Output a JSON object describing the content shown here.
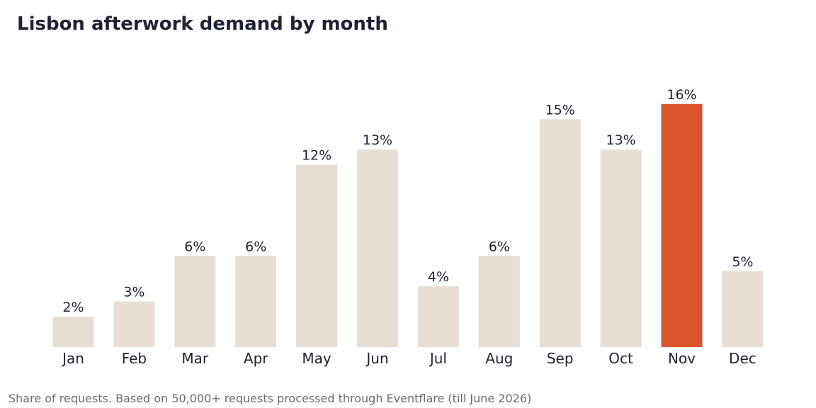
{
  "footnote": "Share of requests. Based on 50,000+ requests processed through Eventflare (till June 2026)",
  "colors": {
    "bar": "#e7ded5",
    "highlight": "#d9532b",
    "text": "#1f2230",
    "footnote": "#6b6b75",
    "background": "#ffffff"
  },
  "chart_data": {
    "type": "bar",
    "title": "Lisbon afterwork demand by month",
    "xlabel": "",
    "ylabel": "",
    "categories": [
      "Jan",
      "Feb",
      "Mar",
      "Apr",
      "May",
      "Jun",
      "Jul",
      "Aug",
      "Sep",
      "Oct",
      "Nov",
      "Dec"
    ],
    "values": [
      2,
      3,
      6,
      6,
      12,
      13,
      4,
      6,
      15,
      13,
      16,
      5
    ],
    "value_labels": [
      "2%",
      "3%",
      "6%",
      "6%",
      "12%",
      "13%",
      "4%",
      "6%",
      "15%",
      "13%",
      "16%",
      "5%"
    ],
    "unit": "%",
    "highlight_category": "Nov",
    "ylim": [
      0,
      16
    ],
    "grid": false,
    "legend": "none"
  }
}
